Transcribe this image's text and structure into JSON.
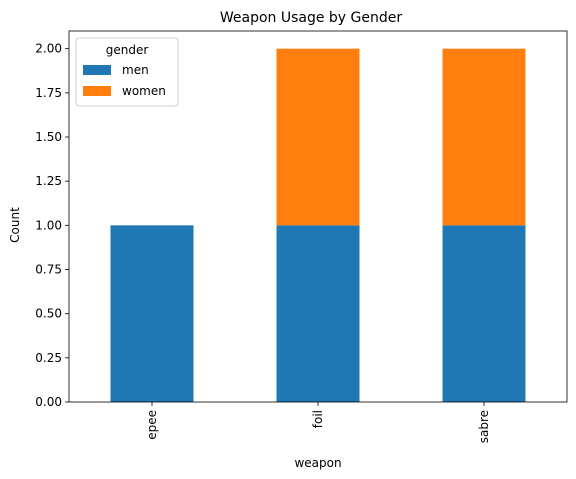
{
  "chart_data": {
    "type": "bar",
    "stacked": true,
    "title": "Weapon Usage by Gender",
    "xlabel": "weapon",
    "ylabel": "Count",
    "categories": [
      "epee",
      "foil",
      "sabre"
    ],
    "series": [
      {
        "name": "men",
        "values": [
          1,
          1,
          1
        ],
        "color": "#1f77b4"
      },
      {
        "name": "women",
        "values": [
          0,
          1,
          1
        ],
        "color": "#ff7f0e"
      }
    ],
    "ylim": [
      0,
      2.1
    ],
    "yticks": [
      "0.00",
      "0.25",
      "0.50",
      "0.75",
      "1.00",
      "1.25",
      "1.50",
      "1.75",
      "2.00"
    ],
    "grid": false,
    "legend": {
      "title": "gender",
      "placement": "top-left"
    }
  }
}
